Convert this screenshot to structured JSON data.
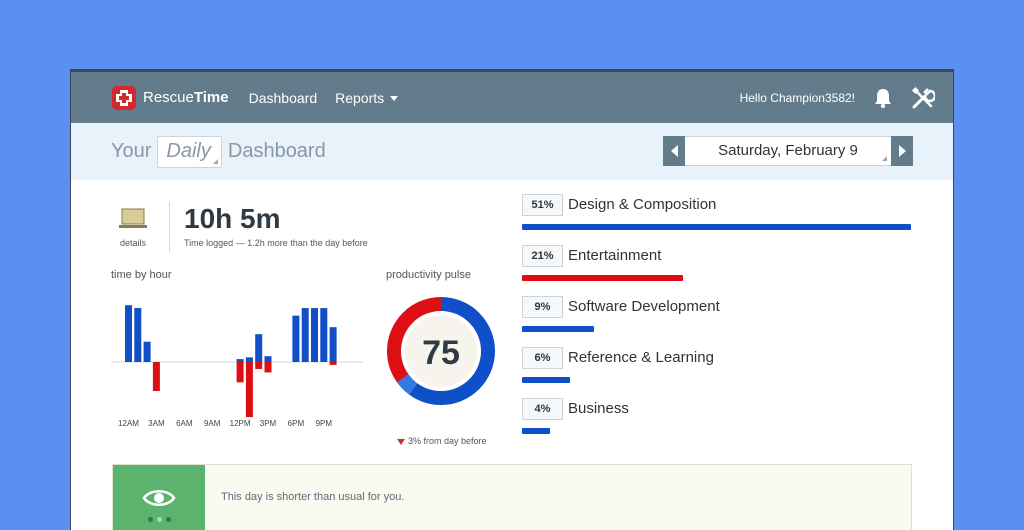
{
  "header": {
    "logo_text_a": "Rescue",
    "logo_text_b": "Time",
    "nav": {
      "dashboard": "Dashboard",
      "reports": "Reports"
    },
    "greeting": "Hello Champion3582!",
    "icons": [
      "bell-icon",
      "tools-icon"
    ]
  },
  "subheader": {
    "title_prefix": "Your",
    "period": "Daily",
    "title_suffix": "Dashboard",
    "date": "Saturday, February 9"
  },
  "summary": {
    "details_label": "details",
    "time_logged": "10h 5m",
    "time_logged_note": "Time logged — 1.2h more than the day before"
  },
  "time_by_hour": {
    "label": "time by hour",
    "tick_labels": [
      "12AM",
      "3AM",
      "6AM",
      "9AM",
      "12PM",
      "3PM",
      "6PM",
      "9PM"
    ]
  },
  "productivity_pulse": {
    "label": "productivity pulse",
    "score": "75",
    "delta": "3% from day before"
  },
  "chart_data": {
    "type": "bar",
    "title": "",
    "xlabel": "",
    "ylabel": "",
    "x_ticks": [
      "12AM",
      "3AM",
      "6AM",
      "9AM",
      "12PM",
      "3PM",
      "6PM",
      "9PM"
    ],
    "series": [
      {
        "values": [
          0.98,
          0.93,
          0.35,
          0,
          0,
          0,
          0,
          0,
          0,
          0,
          0,
          0,
          0.05,
          0.08,
          0.48,
          0.1,
          0,
          0,
          0.8,
          0.93,
          0.93,
          0.93,
          0.6,
          0
        ]
      },
      {
        "values": [
          0,
          0,
          0,
          -0.5,
          0,
          0,
          0,
          0,
          0,
          0,
          0,
          0,
          -0.35,
          -0.95,
          -0.12,
          -0.18,
          0,
          0,
          0,
          0,
          0,
          0,
          -0.05,
          0
        ]
      }
    ],
    "colors": {
      "productive": "#0f4fc7",
      "unproductive": "#dd0f14"
    }
  },
  "pulse_data": {
    "score": 75,
    "segments": [
      {
        "value": 60,
        "color": "#0f4fc7"
      },
      {
        "value": 5,
        "color": "#2f7be0"
      },
      {
        "value": 35,
        "color": "#dd0f14"
      }
    ]
  },
  "categories": [
    {
      "pct": "51%",
      "name": "Design & Composition",
      "fraction": 1.0,
      "color": "#0f4fc7"
    },
    {
      "pct": "21%",
      "name": "Entertainment",
      "fraction": 0.415,
      "color": "#dd0f14"
    },
    {
      "pct": "9%",
      "name": "Software Development",
      "fraction": 0.185,
      "color": "#0f4fc7"
    },
    {
      "pct": "6%",
      "name": "Reference & Learning",
      "fraction": 0.124,
      "color": "#0f4fc7"
    },
    {
      "pct": "4%",
      "name": "Business",
      "fraction": 0.072,
      "color": "#0f4fc7"
    }
  ],
  "notice": {
    "text": "This day is shorter than usual for you."
  },
  "colors": {
    "topbar": "#627c8c",
    "subheader": "#e8f2fb",
    "notice_green": "#5bb36e"
  }
}
